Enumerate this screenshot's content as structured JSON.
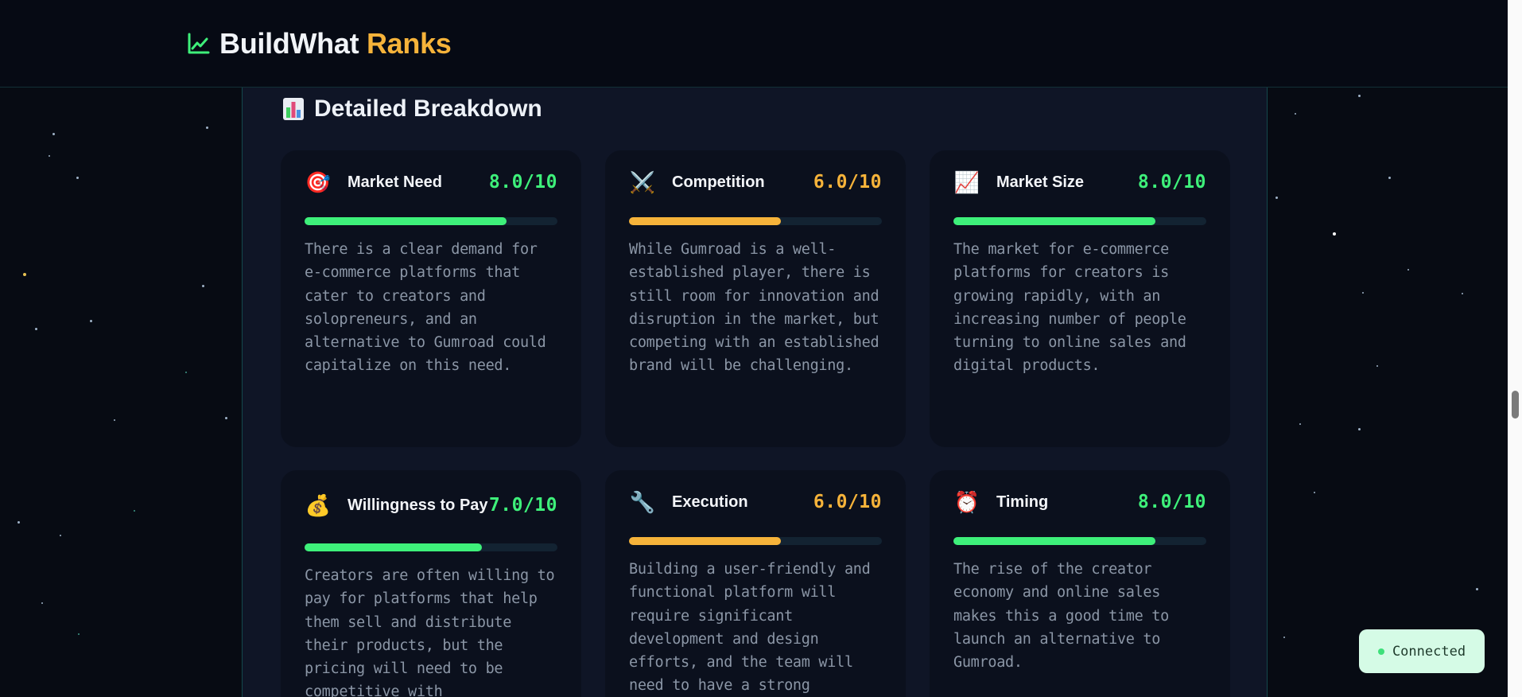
{
  "header": {
    "brand_main": "BuildWhat",
    "brand_accent": "Ranks",
    "icon": "trending-up-icon"
  },
  "breakdown": {
    "title": "Detailed Breakdown",
    "title_icon": "bar-chart-icon",
    "cards": [
      {
        "emoji": "🎯",
        "icon": "target-icon",
        "title": "Market Need",
        "score": "8.0/10",
        "score_value": 8.0,
        "description": "There is a clear demand for e-commerce platforms that cater to creators and solopreneurs, and an alternative to Gumroad could capitalize on this need."
      },
      {
        "emoji": "⚔️",
        "icon": "crossed-swords-icon",
        "title": "Competition",
        "score": "6.0/10",
        "score_value": 6.0,
        "description": "While Gumroad is a well-established player, there is still room for innovation and disruption in the market, but competing with an established brand will be challenging."
      },
      {
        "emoji": "📈",
        "icon": "chart-increasing-icon",
        "title": "Market Size",
        "score": "8.0/10",
        "score_value": 8.0,
        "description": "The market for e-commerce platforms for creators is growing rapidly, with an increasing number of people turning to online sales and digital products."
      },
      {
        "emoji": "💰",
        "icon": "money-bag-icon",
        "title": "Willingness to Pay",
        "score": "7.0/10",
        "score_value": 7.0,
        "description": "Creators are often willing to pay for platforms that help them sell and distribute their products, but the pricing will need to be competitive with"
      },
      {
        "emoji": "🔧",
        "icon": "wrench-icon",
        "title": "Execution",
        "score": "6.0/10",
        "score_value": 6.0,
        "description": "Building a user-friendly and functional platform will require significant development and design efforts, and the team will need to have a strong"
      },
      {
        "emoji": "⏰",
        "icon": "alarm-clock-icon",
        "title": "Timing",
        "score": "8.0/10",
        "score_value": 8.0,
        "description": "The rise of the creator economy and online sales makes this a good time to launch an alternative to Gumroad."
      }
    ]
  },
  "status": {
    "label": "Connected",
    "color": "#3ee07a"
  },
  "colors": {
    "accent_green": "#3ef07a",
    "accent_amber": "#f6b33a",
    "background": "#070b13",
    "panel": "#0f1526",
    "card": "#0b101d"
  }
}
